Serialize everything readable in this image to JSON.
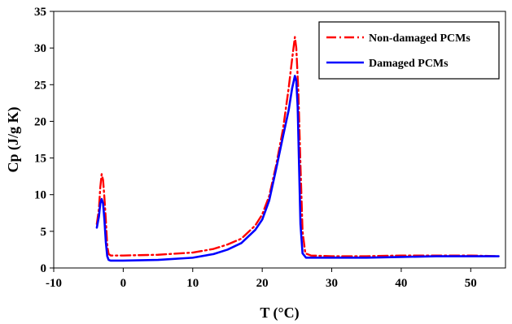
{
  "chart_data": {
    "type": "line",
    "title": "",
    "xlabel": "T (°C)",
    "ylabel": "Cp (J/g K)",
    "xlim": [
      -10,
      55
    ],
    "ylim": [
      0,
      35
    ],
    "x_ticks": [
      -10,
      0,
      10,
      20,
      30,
      40,
      50
    ],
    "y_ticks": [
      0,
      5,
      10,
      15,
      20,
      25,
      30,
      35
    ],
    "grid": false,
    "legend_position": "top-right",
    "series": [
      {
        "name": "Non-damaged PCMs",
        "color": "#ff0000",
        "line_style": "dash-dot",
        "points": [
          [
            -3.8,
            6.0
          ],
          [
            -3.5,
            8.0
          ],
          [
            -3.3,
            11.0
          ],
          [
            -3.1,
            12.8
          ],
          [
            -2.9,
            12.0
          ],
          [
            -2.7,
            9.5
          ],
          [
            -2.5,
            6.5
          ],
          [
            -2.3,
            3.0
          ],
          [
            -2.1,
            1.9
          ],
          [
            -1.8,
            1.7
          ],
          [
            0,
            1.7
          ],
          [
            5,
            1.8
          ],
          [
            10,
            2.1
          ],
          [
            13,
            2.6
          ],
          [
            15,
            3.2
          ],
          [
            17,
            4.0
          ],
          [
            19,
            5.8
          ],
          [
            20,
            7.3
          ],
          [
            21,
            9.8
          ],
          [
            22,
            14.0
          ],
          [
            23,
            19.0
          ],
          [
            23.8,
            24.5
          ],
          [
            24.3,
            28.5
          ],
          [
            24.7,
            31.5
          ],
          [
            24.9,
            30.0
          ],
          [
            25.2,
            24.0
          ],
          [
            25.5,
            14.0
          ],
          [
            25.8,
            5.0
          ],
          [
            26.2,
            2.0
          ],
          [
            27,
            1.7
          ],
          [
            30,
            1.6
          ],
          [
            35,
            1.6
          ],
          [
            40,
            1.7
          ],
          [
            45,
            1.7
          ],
          [
            50,
            1.7
          ],
          [
            54,
            1.6
          ]
        ]
      },
      {
        "name": "Damaged PCMs",
        "color": "#0000ff",
        "line_style": "solid",
        "points": [
          [
            -3.8,
            5.5
          ],
          [
            -3.5,
            7.0
          ],
          [
            -3.3,
            8.8
          ],
          [
            -3.1,
            9.4
          ],
          [
            -2.9,
            8.8
          ],
          [
            -2.7,
            6.5
          ],
          [
            -2.5,
            3.5
          ],
          [
            -2.3,
            1.6
          ],
          [
            -2.1,
            1.1
          ],
          [
            -1.8,
            1.0
          ],
          [
            0,
            1.0
          ],
          [
            5,
            1.1
          ],
          [
            10,
            1.4
          ],
          [
            13,
            1.9
          ],
          [
            15,
            2.5
          ],
          [
            17,
            3.4
          ],
          [
            19,
            5.2
          ],
          [
            20,
            6.6
          ],
          [
            21,
            9.2
          ],
          [
            22,
            13.5
          ],
          [
            23,
            18.0
          ],
          [
            23.8,
            21.5
          ],
          [
            24.3,
            24.5
          ],
          [
            24.7,
            26.2
          ],
          [
            24.9,
            25.5
          ],
          [
            25.1,
            22.0
          ],
          [
            25.3,
            14.0
          ],
          [
            25.5,
            6.0
          ],
          [
            25.8,
            2.0
          ],
          [
            26.3,
            1.4
          ],
          [
            28,
            1.4
          ],
          [
            30,
            1.4
          ],
          [
            35,
            1.4
          ],
          [
            40,
            1.5
          ],
          [
            45,
            1.6
          ],
          [
            50,
            1.6
          ],
          [
            54,
            1.6
          ]
        ]
      }
    ]
  }
}
